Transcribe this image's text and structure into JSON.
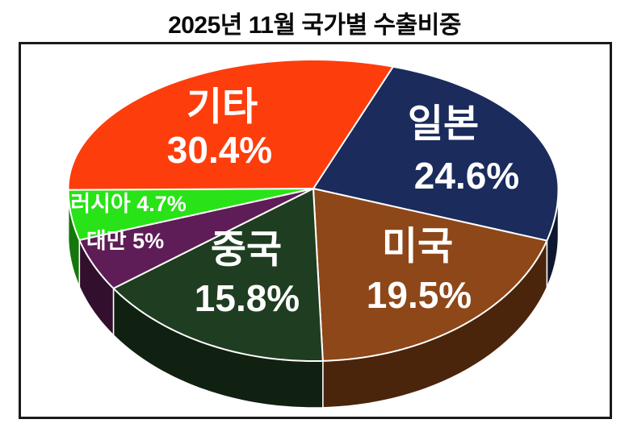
{
  "title": "2025년 11월 국가별 수출비중",
  "frame": {
    "background": "#FFFFFF",
    "border_color": "#1A1A1A"
  },
  "chart_data": {
    "type": "pie",
    "style": "3d",
    "title": "2025년 11월 국가별 수출비중",
    "unit": "%",
    "start_angle_deg": 19,
    "clockwise": true,
    "legend": "none",
    "label_color": "#FFFFFF",
    "slices": [
      {
        "id": "japan",
        "name": "일본",
        "value": 24.6,
        "pct_label": "24.6%",
        "color": "#1A2B5C",
        "label_layout": "two-line",
        "name_pos": [
          549,
          154
        ],
        "pct_pos": [
          578,
          218
        ],
        "name_size": 48,
        "pct_size": 46
      },
      {
        "id": "usa",
        "name": "미국",
        "value": 19.5,
        "pct_label": "19.5%",
        "color": "#8E4718",
        "label_layout": "two-line",
        "name_pos": [
          517,
          306
        ],
        "pct_pos": [
          519,
          366
        ],
        "name_size": 48,
        "pct_size": 46
      },
      {
        "id": "china",
        "name": "중국",
        "value": 15.8,
        "pct_label": "15.8%",
        "color": "#1F3D21",
        "label_layout": "two-line",
        "name_pos": [
          305,
          310
        ],
        "pct_pos": [
          306,
          370
        ],
        "name_size": 48,
        "pct_size": 46
      },
      {
        "id": "taiwan",
        "name": "대만",
        "value": 5,
        "pct_label": "5%",
        "color": "#5E1D56",
        "label_layout": "inline",
        "inline_pos": [
          155,
          299
        ],
        "inline_size": 27
      },
      {
        "id": "russia",
        "name": "러시아",
        "value": 4.7,
        "pct_label": "4.7%",
        "color": "#28E317",
        "label_layout": "inline",
        "inline_pos": [
          159,
          253
        ],
        "inline_size": 27
      },
      {
        "id": "others",
        "name": "기타",
        "value": 30.4,
        "pct_label": "30.4%",
        "color": "#FE3D0D",
        "label_layout": "two-line",
        "name_pos": [
          275,
          133
        ],
        "pct_pos": [
          272,
          186
        ],
        "name_size": 48,
        "pct_size": 46
      }
    ]
  }
}
